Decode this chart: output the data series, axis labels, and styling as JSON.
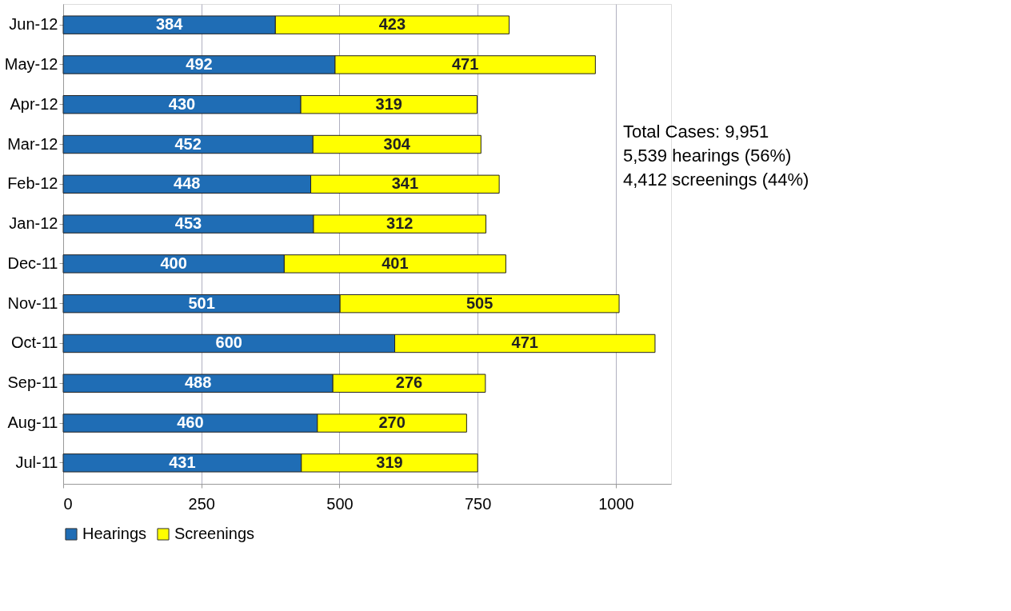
{
  "chart_data": {
    "type": "bar",
    "orientation": "horizontal",
    "stacked": true,
    "data_labels": true,
    "grid": "x",
    "legend": "bottom",
    "categories": [
      "Jun-12",
      "May-12",
      "Apr-12",
      "Mar-12",
      "Feb-12",
      "Jan-12",
      "Dec-11",
      "Nov-11",
      "Oct-11",
      "Sep-11",
      "Aug-11",
      "Jul-11"
    ],
    "series": [
      {
        "name": "Hearings",
        "color": "#1f6db5",
        "values": [
          384,
          492,
          430,
          452,
          448,
          453,
          400,
          501,
          600,
          488,
          460,
          431
        ]
      },
      {
        "name": "Screenings",
        "color": "#ffff00",
        "values": [
          423,
          471,
          319,
          304,
          341,
          312,
          401,
          505,
          471,
          276,
          270,
          319
        ]
      }
    ],
    "xlim": [
      0,
      1100
    ],
    "xticks": [
      0,
      250,
      500,
      750,
      1000
    ],
    "annotations": [
      "Total Cases: 9,951",
      "5,539 hearings (56%)",
      "4,412 screenings (44%)"
    ]
  }
}
